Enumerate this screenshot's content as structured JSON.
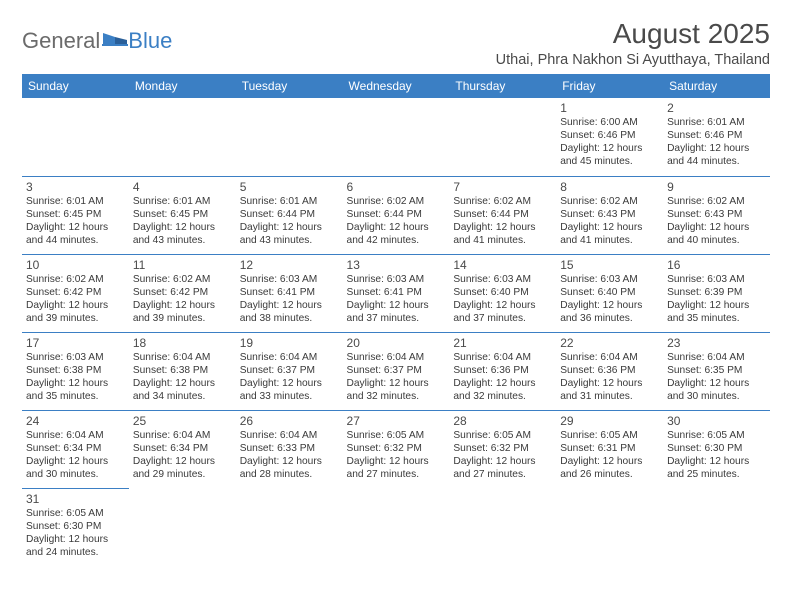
{
  "brand": {
    "part1": "General",
    "part2": "Blue"
  },
  "title": "August 2025",
  "location": "Uthai, Phra Nakhon Si Ayutthaya, Thailand",
  "colors": {
    "header_bg": "#3b7fc4",
    "header_text": "#ffffff",
    "border": "#3b7fc4",
    "text": "#3a3a3a",
    "title_text": "#4a4a4a",
    "logo_gray": "#6b6b6b"
  },
  "weekdays": [
    "Sunday",
    "Monday",
    "Tuesday",
    "Wednesday",
    "Thursday",
    "Friday",
    "Saturday"
  ],
  "labels": {
    "sunrise": "Sunrise:",
    "sunset": "Sunset:",
    "daylight": "Daylight:"
  },
  "weeks": [
    [
      null,
      null,
      null,
      null,
      null,
      {
        "d": "1",
        "sr": "6:00 AM",
        "ss": "6:46 PM",
        "dl": "12 hours and 45 minutes."
      },
      {
        "d": "2",
        "sr": "6:01 AM",
        "ss": "6:46 PM",
        "dl": "12 hours and 44 minutes."
      }
    ],
    [
      {
        "d": "3",
        "sr": "6:01 AM",
        "ss": "6:45 PM",
        "dl": "12 hours and 44 minutes."
      },
      {
        "d": "4",
        "sr": "6:01 AM",
        "ss": "6:45 PM",
        "dl": "12 hours and 43 minutes."
      },
      {
        "d": "5",
        "sr": "6:01 AM",
        "ss": "6:44 PM",
        "dl": "12 hours and 43 minutes."
      },
      {
        "d": "6",
        "sr": "6:02 AM",
        "ss": "6:44 PM",
        "dl": "12 hours and 42 minutes."
      },
      {
        "d": "7",
        "sr": "6:02 AM",
        "ss": "6:44 PM",
        "dl": "12 hours and 41 minutes."
      },
      {
        "d": "8",
        "sr": "6:02 AM",
        "ss": "6:43 PM",
        "dl": "12 hours and 41 minutes."
      },
      {
        "d": "9",
        "sr": "6:02 AM",
        "ss": "6:43 PM",
        "dl": "12 hours and 40 minutes."
      }
    ],
    [
      {
        "d": "10",
        "sr": "6:02 AM",
        "ss": "6:42 PM",
        "dl": "12 hours and 39 minutes."
      },
      {
        "d": "11",
        "sr": "6:02 AM",
        "ss": "6:42 PM",
        "dl": "12 hours and 39 minutes."
      },
      {
        "d": "12",
        "sr": "6:03 AM",
        "ss": "6:41 PM",
        "dl": "12 hours and 38 minutes."
      },
      {
        "d": "13",
        "sr": "6:03 AM",
        "ss": "6:41 PM",
        "dl": "12 hours and 37 minutes."
      },
      {
        "d": "14",
        "sr": "6:03 AM",
        "ss": "6:40 PM",
        "dl": "12 hours and 37 minutes."
      },
      {
        "d": "15",
        "sr": "6:03 AM",
        "ss": "6:40 PM",
        "dl": "12 hours and 36 minutes."
      },
      {
        "d": "16",
        "sr": "6:03 AM",
        "ss": "6:39 PM",
        "dl": "12 hours and 35 minutes."
      }
    ],
    [
      {
        "d": "17",
        "sr": "6:03 AM",
        "ss": "6:38 PM",
        "dl": "12 hours and 35 minutes."
      },
      {
        "d": "18",
        "sr": "6:04 AM",
        "ss": "6:38 PM",
        "dl": "12 hours and 34 minutes."
      },
      {
        "d": "19",
        "sr": "6:04 AM",
        "ss": "6:37 PM",
        "dl": "12 hours and 33 minutes."
      },
      {
        "d": "20",
        "sr": "6:04 AM",
        "ss": "6:37 PM",
        "dl": "12 hours and 32 minutes."
      },
      {
        "d": "21",
        "sr": "6:04 AM",
        "ss": "6:36 PM",
        "dl": "12 hours and 32 minutes."
      },
      {
        "d": "22",
        "sr": "6:04 AM",
        "ss": "6:36 PM",
        "dl": "12 hours and 31 minutes."
      },
      {
        "d": "23",
        "sr": "6:04 AM",
        "ss": "6:35 PM",
        "dl": "12 hours and 30 minutes."
      }
    ],
    [
      {
        "d": "24",
        "sr": "6:04 AM",
        "ss": "6:34 PM",
        "dl": "12 hours and 30 minutes."
      },
      {
        "d": "25",
        "sr": "6:04 AM",
        "ss": "6:34 PM",
        "dl": "12 hours and 29 minutes."
      },
      {
        "d": "26",
        "sr": "6:04 AM",
        "ss": "6:33 PM",
        "dl": "12 hours and 28 minutes."
      },
      {
        "d": "27",
        "sr": "6:05 AM",
        "ss": "6:32 PM",
        "dl": "12 hours and 27 minutes."
      },
      {
        "d": "28",
        "sr": "6:05 AM",
        "ss": "6:32 PM",
        "dl": "12 hours and 27 minutes."
      },
      {
        "d": "29",
        "sr": "6:05 AM",
        "ss": "6:31 PM",
        "dl": "12 hours and 26 minutes."
      },
      {
        "d": "30",
        "sr": "6:05 AM",
        "ss": "6:30 PM",
        "dl": "12 hours and 25 minutes."
      }
    ],
    [
      {
        "d": "31",
        "sr": "6:05 AM",
        "ss": "6:30 PM",
        "dl": "12 hours and 24 minutes."
      },
      null,
      null,
      null,
      null,
      null,
      null
    ]
  ]
}
